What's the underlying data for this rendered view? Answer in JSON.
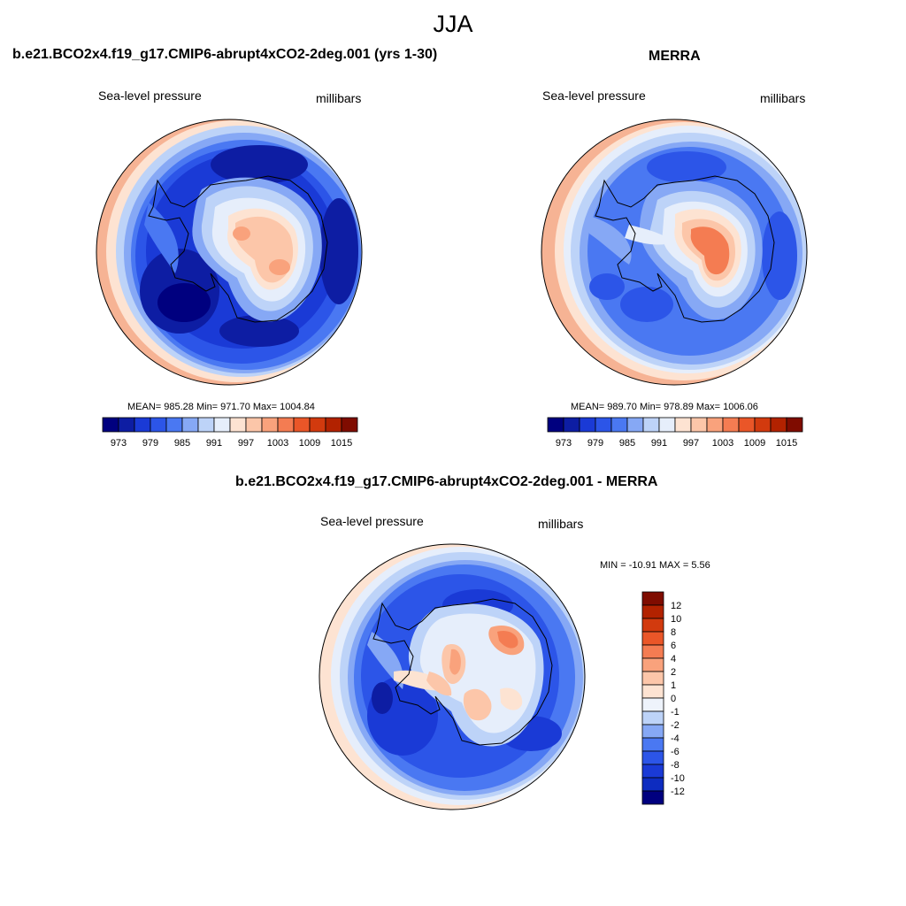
{
  "figure": {
    "title": "JJA",
    "panels": {
      "model": {
        "title": "b.e21.BCO2x4.f19_g17.CMIP6-abrupt4xCO2-2deg.001 (yrs 1-30)",
        "var_label": "Sea-level pressure",
        "units_label": "millibars",
        "stats": "MEAN= 985.28  Min= 971.70  Max= 1004.84"
      },
      "obs": {
        "title": "MERRA",
        "var_label": "Sea-level pressure",
        "units_label": "millibars",
        "stats": "MEAN= 989.70  Min= 978.89  Max= 1006.06"
      },
      "diff": {
        "title": "b.e21.BCO2x4.f19_g17.CMIP6-abrupt4xCO2-2deg.001 - MERRA",
        "var_label": "Sea-level pressure",
        "units_label": "millibars",
        "stats": "MIN = -10.91 MAX =   5.56"
      }
    },
    "colorbar_abs": {
      "colors": [
        "#00007f",
        "#0d1da3",
        "#1a3ad6",
        "#2c55e8",
        "#4a78f2",
        "#86a8f5",
        "#bdd3f8",
        "#e6eefb",
        "#fde3d2",
        "#fcc6a9",
        "#f9a27c",
        "#f47c52",
        "#ea5628",
        "#d23a0e",
        "#b22200",
        "#7f0c00"
      ],
      "tick_labels": [
        "973",
        "979",
        "985",
        "991",
        "997",
        "1003",
        "1009",
        "1015"
      ]
    },
    "colorbar_diff": {
      "colors": [
        "#7f0c00",
        "#b22200",
        "#d23a0e",
        "#ea5628",
        "#f47c52",
        "#f9a27c",
        "#fcc6a9",
        "#fde3d2",
        "#eef3fb",
        "#bdd3f8",
        "#86a8f5",
        "#4a78f2",
        "#2c55e8",
        "#1a3ad6",
        "#0d2cc0",
        "#00007f"
      ],
      "tick_labels": [
        "12",
        "10",
        "8",
        "6",
        "4",
        "2",
        "1",
        "0",
        "-1",
        "-2",
        "-4",
        "-6",
        "-8",
        "-10",
        "-12"
      ]
    }
  }
}
